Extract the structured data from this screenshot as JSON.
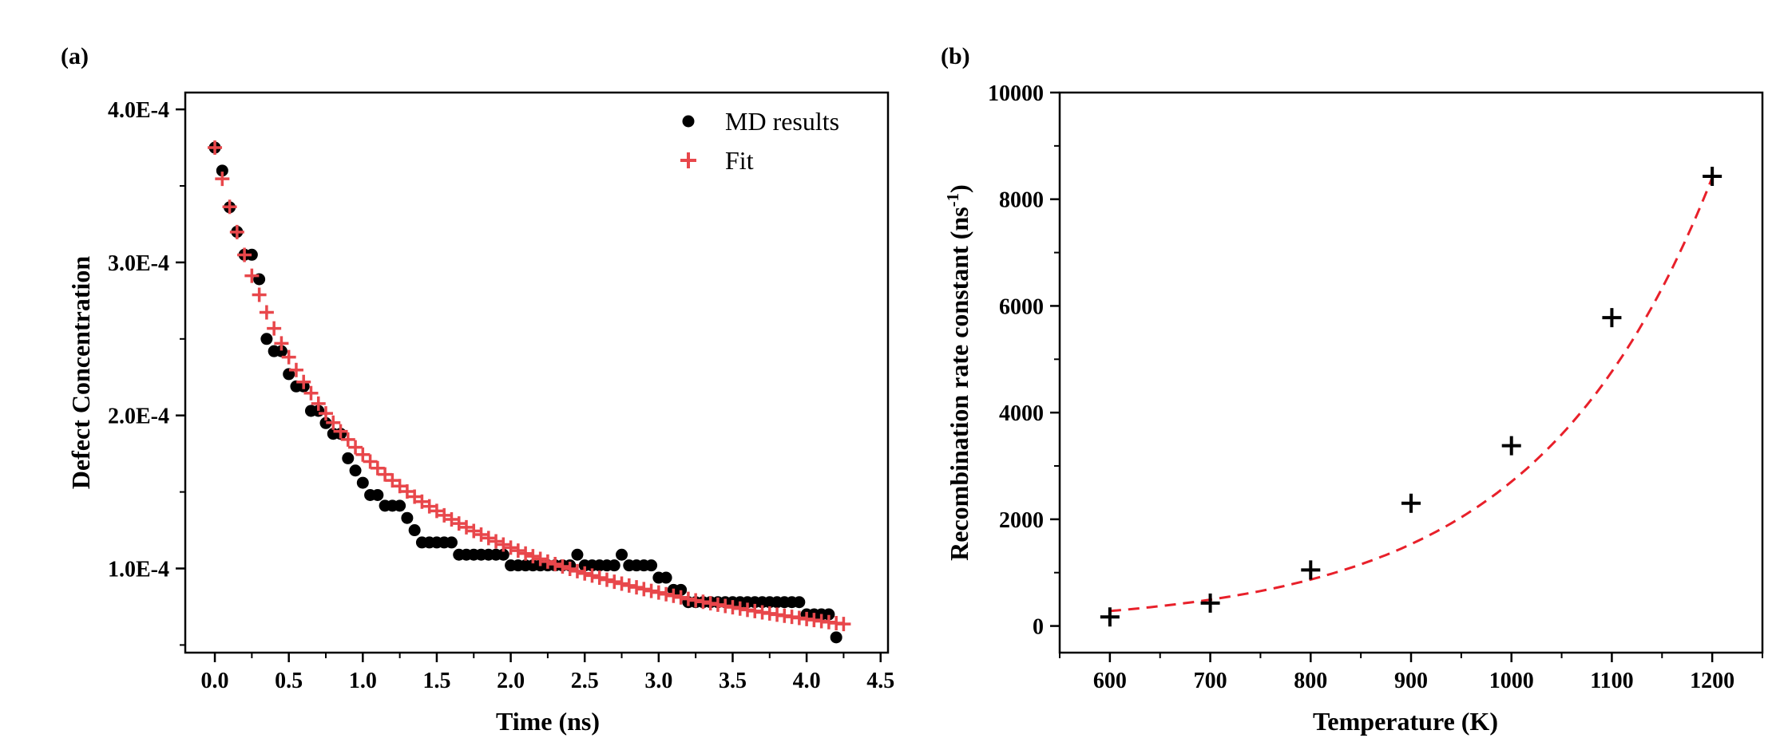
{
  "chart_data": [
    {
      "panel_label": "(a)",
      "type": "scatter",
      "xlabel": "Time (ns)",
      "ylabel": "Defect Concentration",
      "xlim": [
        -0.2,
        4.55
      ],
      "ylim": [
        4.5e-05,
        0.000411
      ],
      "x_ticks": [
        0.0,
        0.5,
        1.0,
        1.5,
        2.0,
        2.5,
        3.0,
        3.5,
        4.0,
        4.5
      ],
      "x_tick_labels": [
        "0.0",
        "0.5",
        "1.0",
        "1.5",
        "2.0",
        "2.5",
        "3.0",
        "3.5",
        "4.0",
        "4.5"
      ],
      "y_ticks": [
        0.0001,
        0.0002,
        0.0003,
        0.0004
      ],
      "y_tick_labels": [
        "1.0E-4",
        "2.0E-4",
        "3.0E-4",
        "4.0E-4"
      ],
      "legend": {
        "placement": "top-right",
        "entries": [
          "MD results",
          "Fit"
        ]
      },
      "series": [
        {
          "name": "MD results",
          "marker": "circle",
          "color": "#000000",
          "x": [
            0.0,
            0.05,
            0.1,
            0.15,
            0.2,
            0.25,
            0.3,
            0.35,
            0.4,
            0.45,
            0.5,
            0.55,
            0.6,
            0.65,
            0.7,
            0.75,
            0.8,
            0.85,
            0.9,
            0.95,
            1.0,
            1.05,
            1.1,
            1.15,
            1.2,
            1.25,
            1.3,
            1.35,
            1.4,
            1.45,
            1.5,
            1.55,
            1.6,
            1.65,
            1.7,
            1.75,
            1.8,
            1.85,
            1.9,
            1.95,
            2.0,
            2.05,
            2.1,
            2.15,
            2.2,
            2.25,
            2.3,
            2.35,
            2.4,
            2.45,
            2.5,
            2.55,
            2.6,
            2.65,
            2.7,
            2.75,
            2.8,
            2.85,
            2.9,
            2.95,
            3.0,
            3.05,
            3.1,
            3.15,
            3.2,
            3.25,
            3.3,
            3.35,
            3.4,
            3.45,
            3.5,
            3.55,
            3.6,
            3.65,
            3.7,
            3.75,
            3.8,
            3.85,
            3.9,
            3.95,
            4.0,
            4.05,
            4.1,
            4.15,
            4.2
          ],
          "y": [
            0.000375,
            0.00036,
            0.000336,
            0.00032,
            0.000305,
            0.000305,
            0.000289,
            0.00025,
            0.000242,
            0.000242,
            0.000227,
            0.000219,
            0.000219,
            0.000203,
            0.000203,
            0.000195,
            0.000188,
            0.000188,
            0.000172,
            0.000164,
            0.000156,
            0.000148,
            0.000148,
            0.000141,
            0.000141,
            0.000141,
            0.000133,
            0.000125,
            0.000117,
            0.000117,
            0.000117,
            0.000117,
            0.000117,
            0.000109,
            0.000109,
            0.000109,
            0.000109,
            0.000109,
            0.000109,
            0.000109,
            0.000102,
            0.000102,
            0.000102,
            0.000102,
            0.000102,
            0.000102,
            0.000102,
            0.000102,
            0.000102,
            0.000109,
            0.000102,
            0.000102,
            0.000102,
            0.000102,
            0.000102,
            0.000109,
            0.000102,
            0.000102,
            0.000102,
            0.000102,
            9.4e-05,
            9.4e-05,
            8.6e-05,
            8.6e-05,
            7.8e-05,
            7.8e-05,
            7.8e-05,
            7.8e-05,
            7.8e-05,
            7.8e-05,
            7.8e-05,
            7.8e-05,
            7.8e-05,
            7.8e-05,
            7.8e-05,
            7.8e-05,
            7.8e-05,
            7.8e-05,
            7.8e-05,
            7.8e-05,
            7e-05,
            7e-05,
            7e-05,
            7e-05,
            5.5e-05
          ]
        },
        {
          "name": "Fit",
          "marker": "plus",
          "color": "#e8474b",
          "model": "y = 0.000375 / (1 + 1.15 t)",
          "x_start": 0.0,
          "x_end": 4.25,
          "x_step": 0.05
        }
      ]
    },
    {
      "panel_label": "(b)",
      "type": "scatter",
      "xlabel": "Temperature (K)",
      "ylabel": "Recombination rate constant (ns",
      "ylabel_superscript": "-1",
      "ylabel_suffix": ")",
      "xlim": [
        550,
        1250
      ],
      "ylim": [
        -500,
        10000
      ],
      "x_ticks": [
        600,
        700,
        800,
        900,
        1000,
        1100,
        1200
      ],
      "x_tick_labels": [
        "600",
        "700",
        "800",
        "900",
        "1000",
        "1100",
        "1200"
      ],
      "y_ticks": [
        0,
        2000,
        4000,
        6000,
        8000,
        10000
      ],
      "y_tick_labels": [
        "0",
        "2000",
        "4000",
        "6000",
        "8000",
        "10000"
      ],
      "series": [
        {
          "name": "data",
          "marker": "plus",
          "color": "#000000",
          "x": [
            600,
            700,
            800,
            900,
            1000,
            1100,
            1200
          ],
          "y": [
            170,
            430,
            1050,
            2300,
            3380,
            5780,
            8430
          ]
        },
        {
          "name": "fit",
          "line": "dashed",
          "color": "#e8202a",
          "model": "y = 280 * exp(0.00567 * (T - 600))",
          "x_start": 600,
          "x_end": 1200
        }
      ]
    }
  ]
}
